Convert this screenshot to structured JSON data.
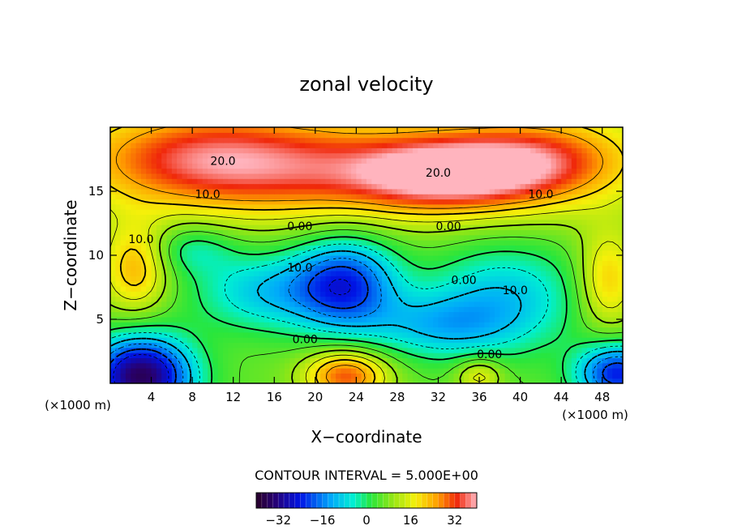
{
  "chart_data": {
    "type": "heatmap",
    "title": "zonal velocity",
    "xlabel": "X−coordinate",
    "ylabel": "Z−coordinate",
    "x_unit_left": "(×1000 m)",
    "x_unit_right": "(×1000 m)",
    "xlim": [
      0,
      50
    ],
    "ylim": [
      0,
      20
    ],
    "x_ticks": [
      4,
      8,
      12,
      16,
      20,
      24,
      28,
      32,
      36,
      40,
      44,
      48
    ],
    "y_ticks": [
      5,
      10,
      15
    ],
    "contour_interval_text": "CONTOUR INTERVAL = 5.000E+00",
    "colorbar": {
      "range": [
        -40,
        40
      ],
      "ticks": [
        -32,
        -16,
        0,
        16,
        32
      ],
      "tick_labels": [
        "−32",
        "−16",
        "0",
        "16",
        "32"
      ]
    },
    "contour_labels": [
      {
        "text": "20.0",
        "x": 11,
        "z": 17.3
      },
      {
        "text": "20.0",
        "x": 32,
        "z": 16.4
      },
      {
        "text": "10.0",
        "x": 9.5,
        "z": 14.7
      },
      {
        "text": "10.0",
        "x": 42,
        "z": 14.7
      },
      {
        "text": "10.0",
        "x": 3,
        "z": 11.2
      },
      {
        "text": "0.00",
        "x": 18.5,
        "z": 12.2
      },
      {
        "text": "0.00",
        "x": 33,
        "z": 12.2
      },
      {
        "text": "10.0",
        "x": 18.5,
        "z": 9.0
      },
      {
        "text": "0.00",
        "x": 34.5,
        "z": 8.0
      },
      {
        "text": "10.0",
        "x": 39.5,
        "z": 7.2
      },
      {
        "text": "0.00",
        "x": 19,
        "z": 3.4
      },
      {
        "text": "0.00",
        "x": 37,
        "z": 2.2
      }
    ],
    "field_features": [
      {
        "x": 23,
        "z": 16.6,
        "value": 20,
        "sx": 14,
        "sz": 2.6
      },
      {
        "x": 33,
        "z": 16.4,
        "value": 24,
        "sx": 6,
        "sz": 1.8
      },
      {
        "x": 42,
        "z": 17.5,
        "value": 18,
        "sx": 6,
        "sz": 2.2
      },
      {
        "x": 9,
        "z": 17.8,
        "value": 18,
        "sx": 8,
        "sz": 2.5
      },
      {
        "x": 2.5,
        "z": 9.0,
        "value": 16,
        "sx": 2.2,
        "sz": 2.4
      },
      {
        "x": 48.5,
        "z": 8.0,
        "value": 15,
        "sx": 2.0,
        "sz": 2.6
      },
      {
        "x": 23,
        "z": 0.6,
        "value": 25,
        "sx": 2.8,
        "sz": 1.4
      },
      {
        "x": 36,
        "z": 0.6,
        "value": 12,
        "sx": 1.6,
        "sz": 1.0
      },
      {
        "x": 3,
        "z": 0.6,
        "value": -42,
        "sx": 3.5,
        "sz": 2.2
      },
      {
        "x": 49.5,
        "z": 0.8,
        "value": -30,
        "sx": 2.8,
        "sz": 1.6
      },
      {
        "x": 23,
        "z": 7.8,
        "value": -28,
        "sx": 3.6,
        "sz": 2.6
      },
      {
        "x": 15,
        "z": 7.2,
        "value": -16,
        "sx": 5.0,
        "sz": 2.2
      },
      {
        "x": 38.5,
        "z": 7.0,
        "value": -16,
        "sx": 5.5,
        "sz": 3.0
      },
      {
        "x": 32,
        "z": 4.5,
        "value": -14,
        "sx": 5.0,
        "sz": 1.8
      },
      {
        "x": 8,
        "z": 10.5,
        "value": -10,
        "sx": 3.0,
        "sz": 1.4
      }
    ]
  }
}
